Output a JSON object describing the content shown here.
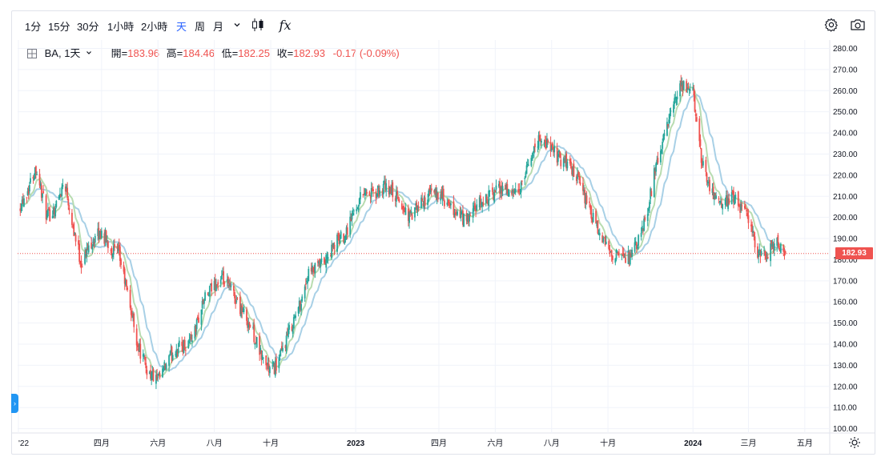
{
  "toolbar": {
    "intervals": [
      {
        "label": "1分",
        "active": false
      },
      {
        "label": "15分",
        "active": false
      },
      {
        "label": "30分",
        "active": false
      },
      {
        "label": "1小時",
        "active": false
      },
      {
        "label": "2小時",
        "active": false
      },
      {
        "label": "天",
        "active": true
      },
      {
        "label": "周",
        "active": false
      },
      {
        "label": "月",
        "active": false
      }
    ],
    "chevron_icon": "chevron-down-icon",
    "candles_icon": "candlestick-icon",
    "indicators_label": "fx",
    "settings_icon": "gear-icon",
    "snapshot_icon": "camera-icon"
  },
  "legend": {
    "symbol_icon": "grid-icon",
    "symbol": "BA, 1天",
    "open_label": "開=",
    "open": "183.96",
    "high_label": "高=",
    "high": "184.46",
    "low_label": "低=",
    "low": "182.25",
    "close_label": "收=",
    "close": "182.93",
    "change": "-0.17 (-0.09%)"
  },
  "colors": {
    "up": "#26a69a",
    "down": "#ef5350",
    "ma_fast": "#b8dcb0",
    "ma_slow": "#a8d0e6",
    "grid": "#f0f3fa",
    "accent": "#2962ff"
  },
  "chart_data": {
    "type": "candlestick",
    "symbol": "BA",
    "interval": "1天",
    "ylim": [
      100,
      282
    ],
    "yticks": [
      "280.00",
      "270.00",
      "260.00",
      "250.00",
      "240.00",
      "230.00",
      "220.00",
      "210.00",
      "200.00",
      "190.00",
      "180.00",
      "170.00",
      "160.00",
      "150.00",
      "140.00",
      "130.00",
      "120.00",
      "110.00",
      "100.00"
    ],
    "xticks": [
      "'22",
      "四月",
      "六月",
      "八月",
      "十月",
      "2023",
      "四月",
      "六月",
      "八月",
      "十月",
      "2024",
      "三月",
      "五月"
    ],
    "last_price": "182.93",
    "grid": true,
    "close_path": [
      [
        "2022-01-01",
        205
      ],
      [
        "2022-01-10",
        212
      ],
      [
        "2022-01-20",
        224
      ],
      [
        "2022-02-01",
        200
      ],
      [
        "2022-02-10",
        205
      ],
      [
        "2022-02-20",
        218
      ],
      [
        "2022-03-01",
        196
      ],
      [
        "2022-03-10",
        178
      ],
      [
        "2022-03-20",
        188
      ],
      [
        "2022-04-01",
        193
      ],
      [
        "2022-04-10",
        186
      ],
      [
        "2022-04-20",
        182
      ],
      [
        "2022-05-01",
        160
      ],
      [
        "2022-05-10",
        140
      ],
      [
        "2022-05-20",
        128
      ],
      [
        "2022-06-01",
        122
      ],
      [
        "2022-06-10",
        130
      ],
      [
        "2022-06-20",
        138
      ],
      [
        "2022-07-01",
        140
      ],
      [
        "2022-07-10",
        145
      ],
      [
        "2022-07-20",
        160
      ],
      [
        "2022-08-01",
        168
      ],
      [
        "2022-08-10",
        170
      ],
      [
        "2022-08-20",
        165
      ],
      [
        "2022-09-01",
        155
      ],
      [
        "2022-09-10",
        148
      ],
      [
        "2022-09-20",
        135
      ],
      [
        "2022-10-01",
        127
      ],
      [
        "2022-10-10",
        132
      ],
      [
        "2022-10-20",
        145
      ],
      [
        "2022-11-01",
        158
      ],
      [
        "2022-11-10",
        172
      ],
      [
        "2022-11-20",
        176
      ],
      [
        "2022-12-01",
        180
      ],
      [
        "2022-12-10",
        188
      ],
      [
        "2022-12-20",
        192
      ],
      [
        "2023-01-01",
        205
      ],
      [
        "2023-01-10",
        213
      ],
      [
        "2023-01-20",
        210
      ],
      [
        "2023-02-01",
        214
      ],
      [
        "2023-02-10",
        212
      ],
      [
        "2023-02-20",
        205
      ],
      [
        "2023-03-01",
        200
      ],
      [
        "2023-03-10",
        205
      ],
      [
        "2023-03-20",
        210
      ],
      [
        "2023-04-01",
        212
      ],
      [
        "2023-04-10",
        205
      ],
      [
        "2023-04-20",
        202
      ],
      [
        "2023-05-01",
        198
      ],
      [
        "2023-05-10",
        204
      ],
      [
        "2023-05-20",
        208
      ],
      [
        "2023-06-01",
        212
      ],
      [
        "2023-06-10",
        215
      ],
      [
        "2023-06-20",
        210
      ],
      [
        "2023-07-01",
        215
      ],
      [
        "2023-07-10",
        230
      ],
      [
        "2023-07-20",
        238
      ],
      [
        "2023-08-01",
        232
      ],
      [
        "2023-08-10",
        228
      ],
      [
        "2023-08-20",
        225
      ],
      [
        "2023-09-01",
        215
      ],
      [
        "2023-09-10",
        205
      ],
      [
        "2023-09-20",
        193
      ],
      [
        "2023-10-01",
        185
      ],
      [
        "2023-10-10",
        182
      ],
      [
        "2023-10-20",
        180
      ],
      [
        "2023-11-01",
        186
      ],
      [
        "2023-11-10",
        198
      ],
      [
        "2023-11-20",
        220
      ],
      [
        "2023-12-01",
        238
      ],
      [
        "2023-12-10",
        252
      ],
      [
        "2023-12-20",
        262
      ],
      [
        "2024-01-01",
        260
      ],
      [
        "2024-01-10",
        228
      ],
      [
        "2024-01-20",
        214
      ],
      [
        "2024-02-01",
        205
      ],
      [
        "2024-02-10",
        210
      ],
      [
        "2024-02-20",
        206
      ],
      [
        "2024-03-01",
        200
      ],
      [
        "2024-03-10",
        184
      ],
      [
        "2024-03-20",
        182
      ],
      [
        "2024-04-01",
        188
      ],
      [
        "2024-04-10",
        182.93
      ]
    ]
  }
}
